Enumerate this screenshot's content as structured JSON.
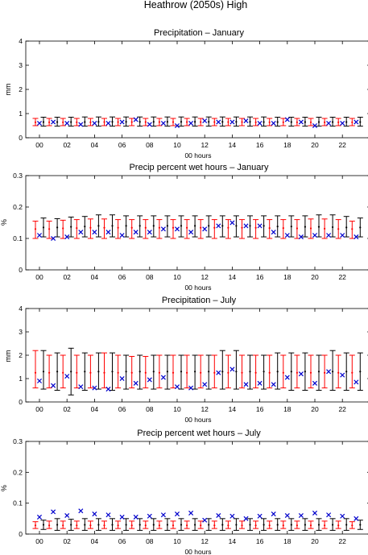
{
  "figure": {
    "title": "Heathrow (2050s) High"
  },
  "colors": {
    "black": "#000000",
    "red": "#ff0000",
    "blue": "#0000cc"
  },
  "chart_data": [
    {
      "type": "errorbar",
      "title": "Precipitation – January",
      "xlabel": "00 hours",
      "ylabel": "mm",
      "ylim": [
        0,
        4
      ],
      "yticks": [
        "0",
        "1",
        "2",
        "3",
        "4"
      ],
      "xticks": [
        "00",
        "02",
        "04",
        "06",
        "08",
        "10",
        "12",
        "14",
        "16",
        "18",
        "20",
        "22"
      ],
      "x": [
        0,
        1,
        2,
        3,
        4,
        5,
        6,
        7,
        8,
        9,
        10,
        11,
        12,
        13,
        14,
        15,
        16,
        17,
        18,
        19,
        20,
        21,
        22,
        23
      ],
      "series": [
        {
          "name": "",
          "kind": "errorbar",
          "color": "#000000",
          "mid": [
            0.65,
            0.65,
            0.65,
            0.65,
            0.66,
            0.66,
            0.66,
            0.66,
            0.66,
            0.66,
            0.66,
            0.66,
            0.66,
            0.66,
            0.66,
            0.66,
            0.65,
            0.65,
            0.65,
            0.65,
            0.65,
            0.65,
            0.65,
            0.65
          ],
          "low": [
            0.48,
            0.48,
            0.48,
            0.48,
            0.48,
            0.48,
            0.48,
            0.48,
            0.48,
            0.48,
            0.48,
            0.48,
            0.48,
            0.48,
            0.48,
            0.48,
            0.48,
            0.48,
            0.48,
            0.48,
            0.48,
            0.48,
            0.48,
            0.48
          ],
          "high": [
            0.85,
            0.85,
            0.85,
            0.86,
            0.86,
            0.86,
            0.86,
            0.86,
            0.86,
            0.86,
            0.86,
            0.86,
            0.86,
            0.86,
            0.86,
            0.86,
            0.86,
            0.85,
            0.85,
            0.85,
            0.85,
            0.85,
            0.85,
            0.85
          ]
        },
        {
          "name": "",
          "kind": "errorbar",
          "color": "#ff0000",
          "mid": [
            0.64,
            0.64,
            0.64,
            0.64,
            0.64,
            0.65,
            0.65,
            0.65,
            0.65,
            0.65,
            0.65,
            0.65,
            0.65,
            0.65,
            0.65,
            0.65,
            0.64,
            0.64,
            0.64,
            0.64,
            0.64,
            0.64,
            0.64,
            0.64
          ],
          "low": [
            0.5,
            0.5,
            0.5,
            0.5,
            0.5,
            0.5,
            0.5,
            0.5,
            0.5,
            0.5,
            0.5,
            0.5,
            0.5,
            0.5,
            0.5,
            0.5,
            0.5,
            0.5,
            0.5,
            0.5,
            0.5,
            0.5,
            0.5,
            0.5
          ],
          "high": [
            0.8,
            0.8,
            0.8,
            0.8,
            0.8,
            0.8,
            0.8,
            0.8,
            0.8,
            0.8,
            0.8,
            0.8,
            0.8,
            0.8,
            0.8,
            0.8,
            0.8,
            0.8,
            0.8,
            0.8,
            0.8,
            0.8,
            0.8,
            0.8
          ]
        },
        {
          "name": "",
          "kind": "marker",
          "color": "#0000cc",
          "values": [
            0.6,
            0.65,
            0.6,
            0.55,
            0.6,
            0.6,
            0.65,
            0.75,
            0.55,
            0.6,
            0.5,
            0.6,
            0.7,
            0.65,
            0.65,
            0.7,
            0.6,
            0.6,
            0.75,
            0.65,
            0.5,
            0.6,
            0.6,
            0.65
          ]
        }
      ]
    },
    {
      "type": "errorbar",
      "title": "Precip percent wet hours – January",
      "xlabel": "00 hours",
      "ylabel": "%",
      "ylim": [
        0,
        0.3
      ],
      "yticks": [
        "0",
        "0.1",
        "0.2",
        "0.3"
      ],
      "xticks": [
        "00",
        "02",
        "04",
        "06",
        "08",
        "10",
        "12",
        "14",
        "16",
        "18",
        "20",
        "22"
      ],
      "x": [
        0,
        1,
        2,
        3,
        4,
        5,
        6,
        7,
        8,
        9,
        10,
        11,
        12,
        13,
        14,
        15,
        16,
        17,
        18,
        19,
        20,
        21,
        22,
        23
      ],
      "series": [
        {
          "name": "",
          "kind": "errorbar",
          "color": "#000000",
          "mid": [
            0.135,
            0.135,
            0.137,
            0.138,
            0.14,
            0.14,
            0.14,
            0.14,
            0.14,
            0.14,
            0.14,
            0.14,
            0.14,
            0.14,
            0.14,
            0.14,
            0.14,
            0.138,
            0.138,
            0.137,
            0.137,
            0.136,
            0.135,
            0.135
          ],
          "low": [
            0.105,
            0.105,
            0.105,
            0.105,
            0.105,
            0.105,
            0.105,
            0.105,
            0.105,
            0.105,
            0.105,
            0.105,
            0.105,
            0.105,
            0.105,
            0.105,
            0.105,
            0.105,
            0.105,
            0.105,
            0.105,
            0.105,
            0.105,
            0.105
          ],
          "high": [
            0.165,
            0.163,
            0.168,
            0.17,
            0.175,
            0.175,
            0.172,
            0.172,
            0.172,
            0.172,
            0.172,
            0.172,
            0.172,
            0.172,
            0.172,
            0.172,
            0.172,
            0.172,
            0.172,
            0.172,
            0.175,
            0.175,
            0.17,
            0.165
          ]
        },
        {
          "name": "",
          "kind": "errorbar",
          "color": "#ff0000",
          "mid": [
            0.13,
            0.13,
            0.132,
            0.133,
            0.134,
            0.134,
            0.134,
            0.134,
            0.134,
            0.134,
            0.134,
            0.134,
            0.134,
            0.134,
            0.134,
            0.134,
            0.134,
            0.133,
            0.133,
            0.132,
            0.132,
            0.131,
            0.13,
            0.13
          ],
          "low": [
            0.1,
            0.1,
            0.1,
            0.1,
            0.1,
            0.1,
            0.1,
            0.1,
            0.1,
            0.1,
            0.1,
            0.1,
            0.1,
            0.1,
            0.1,
            0.1,
            0.1,
            0.1,
            0.1,
            0.1,
            0.1,
            0.1,
            0.1,
            0.1
          ],
          "high": [
            0.155,
            0.155,
            0.158,
            0.16,
            0.162,
            0.162,
            0.16,
            0.16,
            0.16,
            0.16,
            0.16,
            0.16,
            0.16,
            0.16,
            0.16,
            0.16,
            0.16,
            0.16,
            0.16,
            0.16,
            0.162,
            0.162,
            0.16,
            0.155
          ]
        },
        {
          "name": "",
          "kind": "marker",
          "color": "#0000cc",
          "values": [
            0.11,
            0.1,
            0.105,
            0.12,
            0.12,
            0.12,
            0.11,
            0.12,
            0.12,
            0.13,
            0.13,
            0.12,
            0.13,
            0.14,
            0.15,
            0.14,
            0.14,
            0.12,
            0.11,
            0.105,
            0.11,
            0.11,
            0.11,
            0.105
          ]
        }
      ]
    },
    {
      "type": "errorbar",
      "title": "Precipitation – July",
      "xlabel": "00 hours",
      "ylabel": "mm",
      "ylim": [
        0,
        4
      ],
      "yticks": [
        "0",
        "1",
        "2",
        "3",
        "4"
      ],
      "xticks": [
        "00",
        "02",
        "04",
        "06",
        "08",
        "10",
        "12",
        "14",
        "16",
        "18",
        "20",
        "22"
      ],
      "x": [
        0,
        1,
        2,
        3,
        4,
        5,
        6,
        7,
        8,
        9,
        10,
        11,
        12,
        13,
        14,
        15,
        16,
        17,
        18,
        19,
        20,
        21,
        22,
        23
      ],
      "series": [
        {
          "name": "",
          "kind": "errorbar",
          "color": "#000000",
          "mid": [
            1.3,
            1.3,
            1.3,
            1.3,
            1.3,
            1.3,
            1.3,
            1.3,
            1.3,
            1.3,
            1.3,
            1.3,
            1.3,
            1.3,
            1.3,
            1.3,
            1.3,
            1.3,
            1.3,
            1.3,
            1.3,
            1.3,
            1.3,
            1.3
          ],
          "low": [
            0.55,
            0.5,
            0.3,
            0.5,
            0.55,
            0.5,
            0.55,
            0.55,
            0.55,
            0.55,
            0.55,
            0.55,
            0.55,
            0.55,
            0.55,
            0.55,
            0.55,
            0.55,
            0.5,
            0.5,
            0.5,
            0.5,
            0.5,
            0.5
          ],
          "high": [
            2.2,
            2.1,
            2.3,
            2.1,
            2.1,
            2.1,
            2.0,
            2.0,
            2.0,
            2.0,
            2.0,
            2.0,
            2.0,
            2.2,
            2.2,
            2.0,
            2.0,
            2.1,
            2.1,
            2.1,
            2.0,
            2.2,
            2.1,
            2.1
          ]
        },
        {
          "name": "",
          "kind": "errorbar",
          "color": "#ff0000",
          "mid": [
            1.25,
            1.25,
            1.25,
            1.25,
            1.25,
            1.25,
            1.25,
            1.25,
            1.25,
            1.25,
            1.25,
            1.25,
            1.25,
            1.25,
            1.25,
            1.25,
            1.25,
            1.25,
            1.25,
            1.25,
            1.25,
            1.25,
            1.25,
            1.25
          ],
          "low": [
            0.6,
            0.6,
            0.6,
            0.6,
            0.6,
            0.6,
            0.6,
            0.6,
            0.6,
            0.6,
            0.6,
            0.6,
            0.6,
            0.6,
            0.6,
            0.6,
            0.6,
            0.6,
            0.6,
            0.6,
            0.6,
            0.6,
            0.6,
            0.6
          ],
          "high": [
            2.2,
            2.0,
            2.0,
            2.0,
            2.0,
            2.1,
            2.0,
            1.95,
            1.95,
            2.0,
            2.0,
            2.0,
            2.0,
            2.0,
            2.0,
            2.0,
            2.0,
            2.0,
            2.0,
            2.0,
            2.0,
            2.0,
            2.0,
            2.0
          ]
        },
        {
          "name": "",
          "kind": "marker",
          "color": "#0000cc",
          "values": [
            0.9,
            0.7,
            1.1,
            0.65,
            0.6,
            0.55,
            1.0,
            0.8,
            0.95,
            1.05,
            0.65,
            0.6,
            0.75,
            1.25,
            1.4,
            0.75,
            0.8,
            0.75,
            1.05,
            1.2,
            0.8,
            1.3,
            1.15,
            0.85
          ]
        }
      ]
    },
    {
      "type": "errorbar",
      "title": "Precip percent wet hours – July",
      "xlabel": "00 hours",
      "ylabel": "%",
      "ylim": [
        0,
        0.3
      ],
      "yticks": [
        "0",
        "0.1",
        "0.2",
        "0.3"
      ],
      "xticks": [
        "00",
        "02",
        "04",
        "06",
        "08",
        "10",
        "12",
        "14",
        "16",
        "18",
        "20",
        "22"
      ],
      "x": [
        0,
        1,
        2,
        3,
        4,
        5,
        6,
        7,
        8,
        9,
        10,
        11,
        12,
        13,
        14,
        15,
        16,
        17,
        18,
        19,
        20,
        21,
        22,
        23
      ],
      "series": [
        {
          "name": "",
          "kind": "errorbar",
          "color": "#000000",
          "mid": [
            0.03,
            0.03,
            0.03,
            0.03,
            0.03,
            0.03,
            0.03,
            0.03,
            0.03,
            0.03,
            0.03,
            0.03,
            0.03,
            0.03,
            0.03,
            0.03,
            0.03,
            0.03,
            0.03,
            0.03,
            0.03,
            0.03,
            0.03,
            0.03
          ],
          "low": [
            0.015,
            0.012,
            0.012,
            0.012,
            0.012,
            0.012,
            0.012,
            0.012,
            0.012,
            0.012,
            0.012,
            0.012,
            0.012,
            0.012,
            0.012,
            0.012,
            0.012,
            0.012,
            0.012,
            0.012,
            0.012,
            0.012,
            0.012,
            0.015
          ],
          "high": [
            0.045,
            0.05,
            0.048,
            0.05,
            0.05,
            0.05,
            0.05,
            0.05,
            0.05,
            0.05,
            0.05,
            0.05,
            0.05,
            0.05,
            0.05,
            0.05,
            0.05,
            0.05,
            0.05,
            0.05,
            0.05,
            0.05,
            0.05,
            0.045
          ]
        },
        {
          "name": "",
          "kind": "errorbar",
          "color": "#ff0000",
          "mid": [
            0.028,
            0.028,
            0.028,
            0.028,
            0.028,
            0.028,
            0.028,
            0.028,
            0.028,
            0.028,
            0.028,
            0.028,
            0.028,
            0.028,
            0.028,
            0.028,
            0.028,
            0.028,
            0.028,
            0.028,
            0.028,
            0.028,
            0.028,
            0.028
          ],
          "low": [
            0.018,
            0.018,
            0.018,
            0.018,
            0.018,
            0.018,
            0.018,
            0.018,
            0.018,
            0.018,
            0.018,
            0.018,
            0.018,
            0.018,
            0.018,
            0.018,
            0.018,
            0.018,
            0.018,
            0.018,
            0.018,
            0.018,
            0.018,
            0.018
          ],
          "high": [
            0.04,
            0.042,
            0.042,
            0.042,
            0.042,
            0.042,
            0.042,
            0.042,
            0.042,
            0.042,
            0.042,
            0.042,
            0.042,
            0.042,
            0.042,
            0.042,
            0.042,
            0.042,
            0.042,
            0.042,
            0.042,
            0.042,
            0.042,
            0.04
          ]
        },
        {
          "name": "",
          "kind": "marker",
          "color": "#0000cc",
          "values": [
            0.055,
            0.072,
            0.06,
            0.075,
            0.065,
            0.062,
            0.055,
            0.055,
            0.058,
            0.062,
            0.065,
            0.068,
            0.045,
            0.06,
            0.058,
            0.05,
            0.058,
            0.065,
            0.06,
            0.06,
            0.068,
            0.062,
            0.058,
            0.05
          ]
        }
      ]
    }
  ]
}
